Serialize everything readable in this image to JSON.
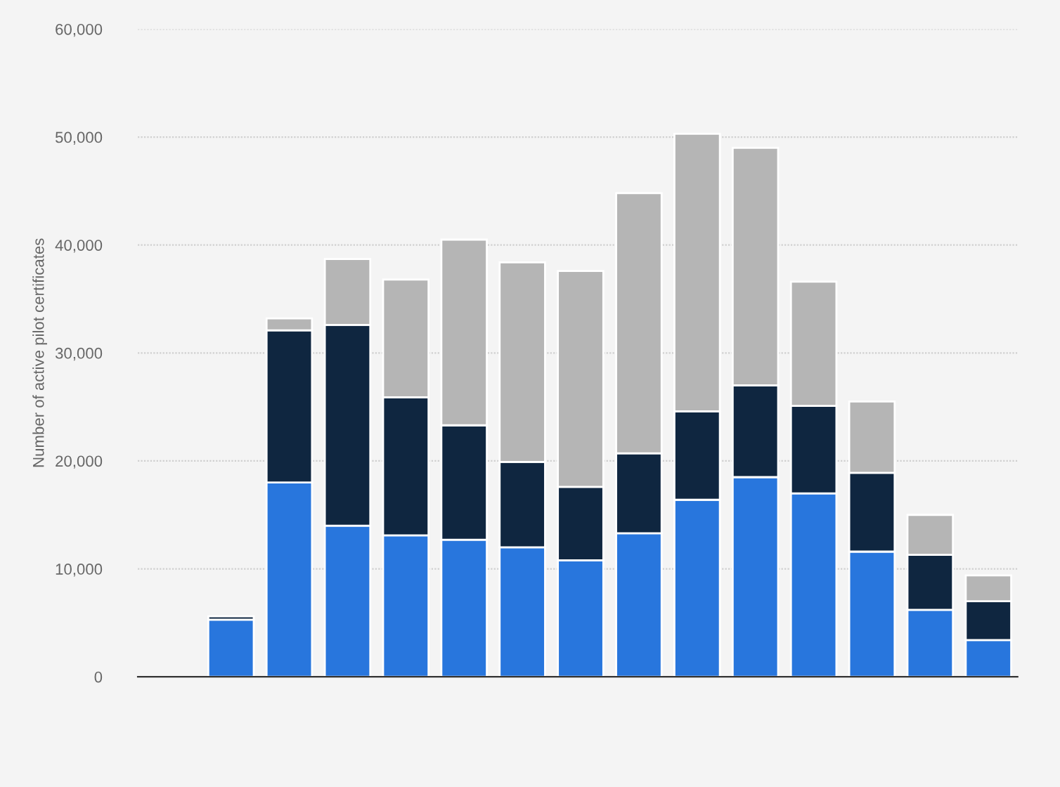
{
  "chart_data": {
    "type": "bar",
    "stacked": true,
    "ylabel": "Number of active pilot certificates",
    "categories": [
      null,
      null,
      null,
      null,
      null,
      null,
      null,
      null,
      null,
      null,
      null,
      null,
      null,
      null,
      null
    ],
    "series": [
      {
        "color": "#2876dd",
        "values": [
          null,
          5300,
          18000,
          14000,
          13100,
          12700,
          12000,
          10800,
          13300,
          16400,
          18500,
          17000,
          11600,
          6200,
          3400
        ]
      },
      {
        "color": "#0f2640",
        "values": [
          null,
          300,
          14100,
          18600,
          12800,
          10600,
          7900,
          6800,
          7400,
          8200,
          8500,
          8100,
          7300,
          5100,
          3600
        ]
      },
      {
        "color": "#b5b5b5",
        "values": [
          null,
          null,
          1100,
          6100,
          10900,
          17200,
          18500,
          20000,
          24100,
          25700,
          22000,
          11500,
          6600,
          3700,
          2400
        ]
      }
    ],
    "ylim": [
      0,
      60000
    ],
    "yticks": [
      {
        "value": 0,
        "label": "0"
      },
      {
        "value": 10000,
        "label": "10,000"
      },
      {
        "value": 20000,
        "label": "20,000"
      },
      {
        "value": 30000,
        "label": "30,000"
      },
      {
        "value": 40000,
        "label": "40,000"
      },
      {
        "value": 50000,
        "label": "50,000"
      },
      {
        "value": 60000,
        "label": "60,000"
      }
    ],
    "grid": "y",
    "legend": false
  }
}
